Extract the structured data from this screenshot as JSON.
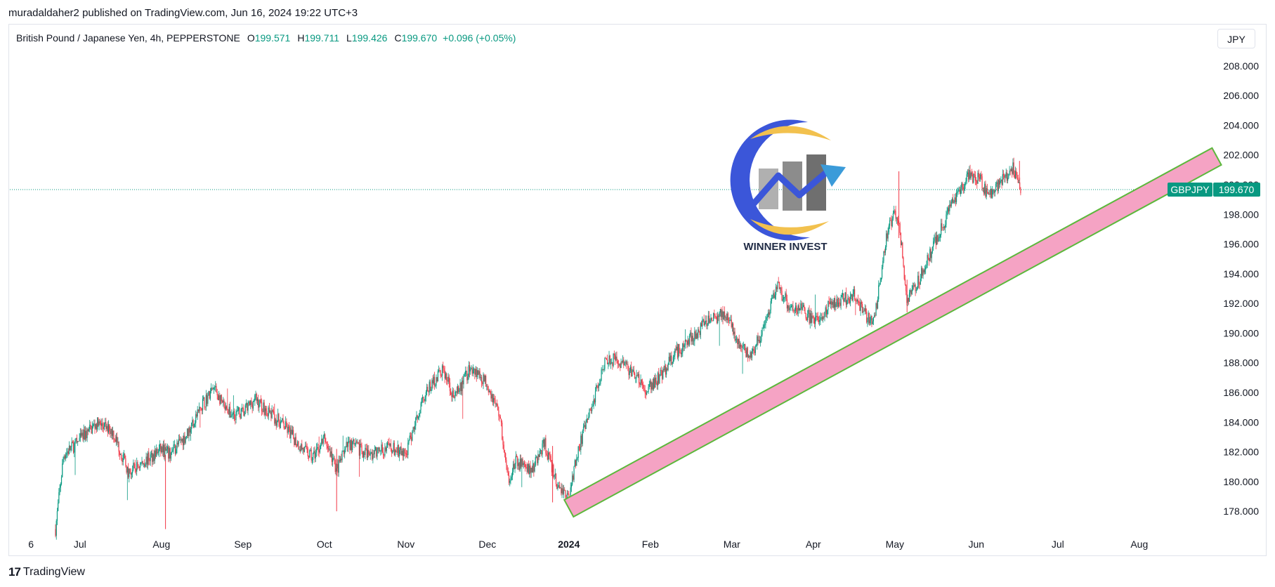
{
  "header": {
    "published": "muradaldaher2 published on TradingView.com, Jun 16, 2024 19:22 UTC+3"
  },
  "legend": {
    "symbol": "British Pound / Japanese Yen, 4h, PEPPERSTONE",
    "open_label": "O",
    "open": "199.571",
    "high_label": "H",
    "high": "199.711",
    "low_label": "L",
    "low": "199.426",
    "close_label": "C",
    "close": "199.670",
    "change": "+0.096 (+0.05%)"
  },
  "currency_button": "JPY",
  "price_tag": {
    "ticker": "GBPJPY",
    "price": "199.670"
  },
  "logo": {
    "text": "WINNER INVEST"
  },
  "footer": {
    "logo_mark": "17",
    "brand": "TradingView"
  },
  "colors": {
    "up": "#089981",
    "down": "#f23645",
    "zone_fill": "#f5a3c4",
    "zone_stroke": "#5cb83c",
    "tag_bg": "#089981",
    "logo_blue": "#3b56d9",
    "logo_gold": "#f2c14e",
    "logo_grey": "#8c8c8c"
  },
  "chart_data": {
    "type": "candlestick",
    "symbol": "GBPJPY",
    "timeframe": "4h",
    "ylim": [
      176.4,
      209.6
    ],
    "y_ticks": [
      "178.000",
      "180.000",
      "182.000",
      "184.000",
      "186.000",
      "188.000",
      "190.000",
      "192.000",
      "194.000",
      "196.000",
      "198.000",
      "200.000",
      "202.000",
      "204.000",
      "206.000",
      "208.000"
    ],
    "x_ticks": [
      {
        "label": "6",
        "t": -0.05
      },
      {
        "label": "Jul",
        "t": 0.55
      },
      {
        "label": "Aug",
        "t": 1.55
      },
      {
        "label": "Sep",
        "t": 2.55
      },
      {
        "label": "Oct",
        "t": 3.55
      },
      {
        "label": "Nov",
        "t": 4.55
      },
      {
        "label": "Dec",
        "t": 5.55
      },
      {
        "label": "2024",
        "t": 6.55,
        "bold": true
      },
      {
        "label": "Feb",
        "t": 7.55
      },
      {
        "label": "Mar",
        "t": 8.55
      },
      {
        "label": "Apr",
        "t": 9.55
      },
      {
        "label": "May",
        "t": 10.55
      },
      {
        "label": "Jun",
        "t": 11.55
      },
      {
        "label": "Jul",
        "t": 12.55
      },
      {
        "label": "Aug",
        "t": 13.55
      }
    ],
    "price_path": [
      [
        0.25,
        176.8
      ],
      [
        0.35,
        181.8
      ],
      [
        0.55,
        182.8
      ],
      [
        0.75,
        183.9
      ],
      [
        0.95,
        183.4
      ],
      [
        1.15,
        180.6
      ],
      [
        1.35,
        181.4
      ],
      [
        1.55,
        182.2
      ],
      [
        1.65,
        181.8
      ],
      [
        1.85,
        183.1
      ],
      [
        2.05,
        185.2
      ],
      [
        2.2,
        186.3
      ],
      [
        2.35,
        184.6
      ],
      [
        2.55,
        184.6
      ],
      [
        2.7,
        185.6
      ],
      [
        2.85,
        184.7
      ],
      [
        3.05,
        183.8
      ],
      [
        3.25,
        182.4
      ],
      [
        3.4,
        181.6
      ],
      [
        3.55,
        182.9
      ],
      [
        3.7,
        180.8
      ],
      [
        3.85,
        182.6
      ],
      [
        4.1,
        181.8
      ],
      [
        4.35,
        182.3
      ],
      [
        4.55,
        181.8
      ],
      [
        4.75,
        185.6
      ],
      [
        5.0,
        187.6
      ],
      [
        5.15,
        185.6
      ],
      [
        5.35,
        187.8
      ],
      [
        5.55,
        186.6
      ],
      [
        5.7,
        184.5
      ],
      [
        5.8,
        180.1
      ],
      [
        5.9,
        181.3
      ],
      [
        6.1,
        180.8
      ],
      [
        6.25,
        182.6
      ],
      [
        6.4,
        179.8
      ],
      [
        6.55,
        178.9
      ],
      [
        6.65,
        181.9
      ],
      [
        6.85,
        185.4
      ],
      [
        7.0,
        188.4
      ],
      [
        7.2,
        188.0
      ],
      [
        7.35,
        187.2
      ],
      [
        7.5,
        186.0
      ],
      [
        7.7,
        187.3
      ],
      [
        7.85,
        188.6
      ],
      [
        8.0,
        189.4
      ],
      [
        8.25,
        190.8
      ],
      [
        8.45,
        191.3
      ],
      [
        8.6,
        189.8
      ],
      [
        8.75,
        188.4
      ],
      [
        8.95,
        190.2
      ],
      [
        9.1,
        193.2
      ],
      [
        9.25,
        191.9
      ],
      [
        9.4,
        191.6
      ],
      [
        9.55,
        190.8
      ],
      [
        9.7,
        191.6
      ],
      [
        9.85,
        192.1
      ],
      [
        10.05,
        192.6
      ],
      [
        10.2,
        191.1
      ],
      [
        10.3,
        190.9
      ],
      [
        10.45,
        196.6
      ],
      [
        10.55,
        198.2
      ],
      [
        10.62,
        196.6
      ],
      [
        10.7,
        192.1
      ],
      [
        10.85,
        193.6
      ],
      [
        11.05,
        196.2
      ],
      [
        11.25,
        198.6
      ],
      [
        11.45,
        200.6
      ],
      [
        11.6,
        200.3
      ],
      [
        11.7,
        199.2
      ],
      [
        11.85,
        200.3
      ],
      [
        12.0,
        201.1
      ],
      [
        12.1,
        199.6
      ]
    ],
    "annotations": [
      {
        "type": "rising_channel_zone",
        "from": {
          "t": 6.55,
          "price": 178.2
        },
        "to": {
          "t": 14.5,
          "price": 201.9
        },
        "thickness_price": 1.3
      }
    ],
    "last_price_line": 199.67
  }
}
